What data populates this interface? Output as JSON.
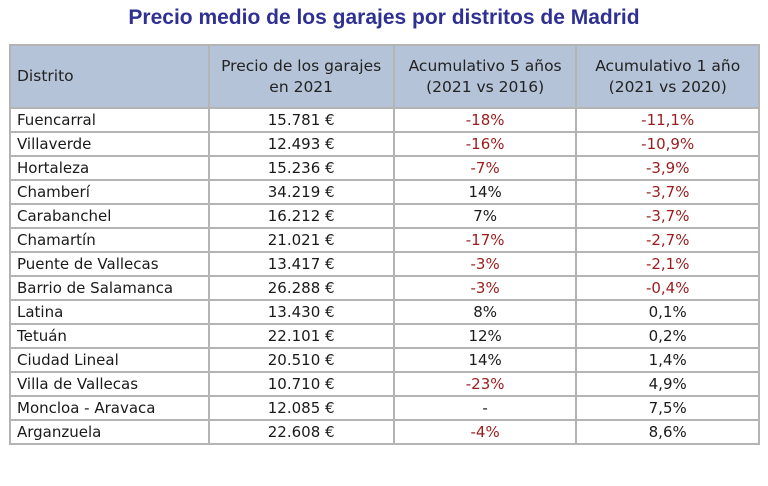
{
  "title": "Precio medio de los garajes por distritos de Madrid",
  "colors": {
    "title": "#2e3192",
    "header_bg": "#b5c3d8",
    "negative": "#9b1c1c",
    "border": "#b4b4b4"
  },
  "table": {
    "headers": [
      {
        "line1": "Distrito",
        "line2": ""
      },
      {
        "line1": "Precio de los garajes",
        "line2": "en 2021"
      },
      {
        "line1": "Acumulativo 5 años",
        "line2": "(2021 vs 2016)"
      },
      {
        "line1": "Acumulativo 1 año",
        "line2": "(2021 vs 2020)"
      }
    ],
    "rows": [
      {
        "district": "Fuencarral",
        "price": "15.781 €",
        "cum5": "-18%",
        "cum1": "-11,1%"
      },
      {
        "district": "Villaverde",
        "price": "12.493 €",
        "cum5": "-16%",
        "cum1": "-10,9%"
      },
      {
        "district": "Hortaleza",
        "price": "15.236 €",
        "cum5": "-7%",
        "cum1": "-3,9%"
      },
      {
        "district": "Chamberí",
        "price": "34.219 €",
        "cum5": "14%",
        "cum1": "-3,7%"
      },
      {
        "district": "Carabanchel",
        "price": "16.212 €",
        "cum5": "7%",
        "cum1": "-3,7%"
      },
      {
        "district": "Chamartín",
        "price": "21.021 €",
        "cum5": "-17%",
        "cum1": "-2,7%"
      },
      {
        "district": "Puente de Vallecas",
        "price": "13.417 €",
        "cum5": "-3%",
        "cum1": "-2,1%"
      },
      {
        "district": "Barrio de Salamanca",
        "price": "26.288 €",
        "cum5": "-3%",
        "cum1": "-0,4%"
      },
      {
        "district": "Latina",
        "price": "13.430 €",
        "cum5": "8%",
        "cum1": "0,1%"
      },
      {
        "district": "Tetuán",
        "price": "22.101 €",
        "cum5": "12%",
        "cum1": "0,2%"
      },
      {
        "district": "Ciudad Lineal",
        "price": "20.510 €",
        "cum5": "14%",
        "cum1": "1,4%"
      },
      {
        "district": "Villa de Vallecas",
        "price": "10.710 €",
        "cum5": "-23%",
        "cum1": "4,9%"
      },
      {
        "district": "Moncloa - Aravaca",
        "price": "12.085 €",
        "cum5": "-",
        "cum1": "7,5%"
      },
      {
        "district": "Arganzuela",
        "price": "22.608 €",
        "cum5": "-4%",
        "cum1": "8,6%"
      }
    ]
  }
}
